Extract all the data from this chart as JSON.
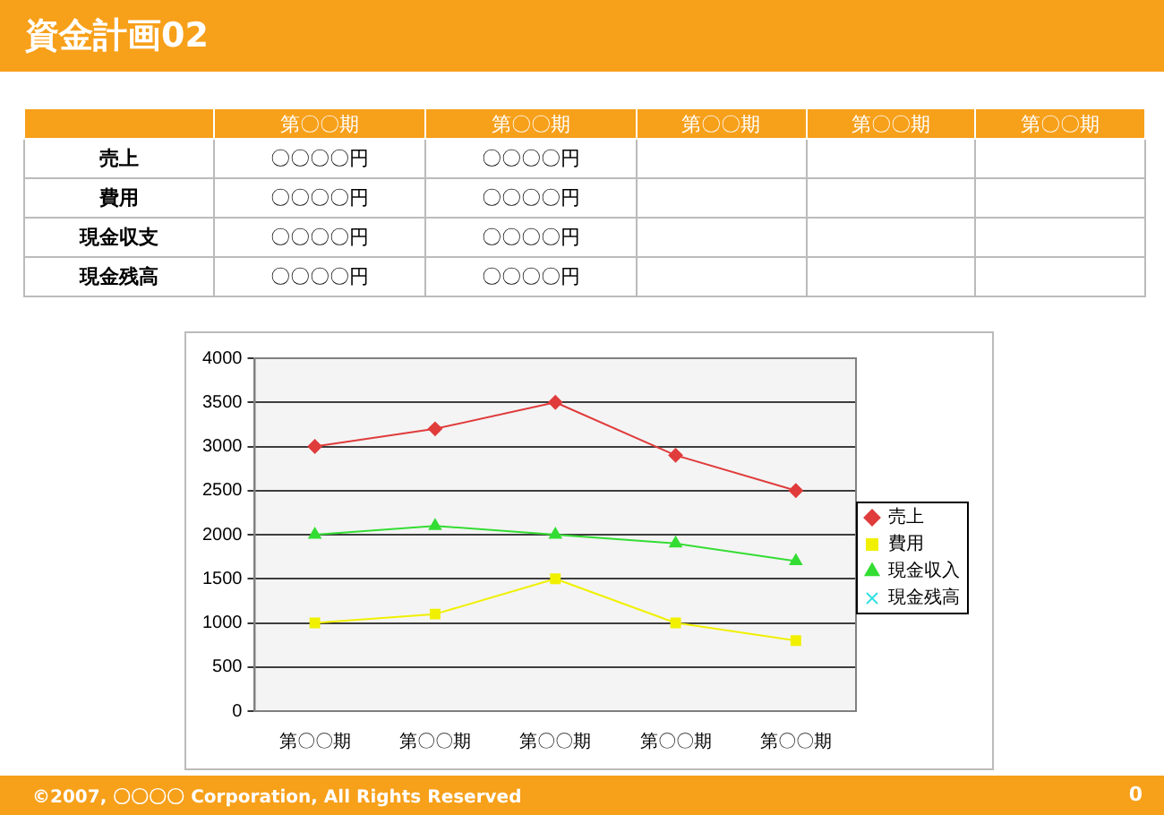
{
  "chart_data": {
    "type": "line",
    "title": "資金計画02",
    "categories": [
      "第〇〇期",
      "第〇〇期",
      "第〇〇期",
      "第〇〇期",
      "第〇〇期"
    ],
    "series": [
      {
        "name": "売上",
        "color": "#e03c3c",
        "marker": "diamond",
        "values": [
          3000,
          3200,
          3500,
          2900,
          2500
        ]
      },
      {
        "name": "費用",
        "color": "#f0f000",
        "marker": "square",
        "values": [
          1000,
          1100,
          1500,
          1000,
          800
        ]
      },
      {
        "name": "現金収入",
        "color": "#33dd33",
        "marker": "triangle",
        "values": [
          2000,
          2100,
          2000,
          1900,
          1700
        ]
      },
      {
        "name": "現金残高",
        "color": "#33e0e0",
        "marker": "cross",
        "values": [
          null,
          null,
          null,
          null,
          null
        ]
      }
    ],
    "ylim": [
      0,
      4000
    ],
    "yticks": [
      0,
      500,
      1000,
      1500,
      2000,
      2500,
      3000,
      3500,
      4000
    ],
    "grid": "y",
    "legend": "right",
    "line_style": "solid",
    "annotations": [
      "©2007, 〇〇〇〇 Corporation, All Rights Reserved",
      "0",
      "第〇〇期",
      "第〇〇期",
      "第〇〇期",
      "第〇〇期",
      "第〇〇期",
      "売上",
      "〇〇〇〇円",
      "〇〇〇〇円",
      "費用",
      "〇〇〇〇円",
      "〇〇〇〇円",
      "現金収支",
      "〇〇〇〇円",
      "〇〇〇〇円",
      "現金残高",
      "〇〇〇〇円",
      "〇〇〇〇円"
    ]
  }
}
